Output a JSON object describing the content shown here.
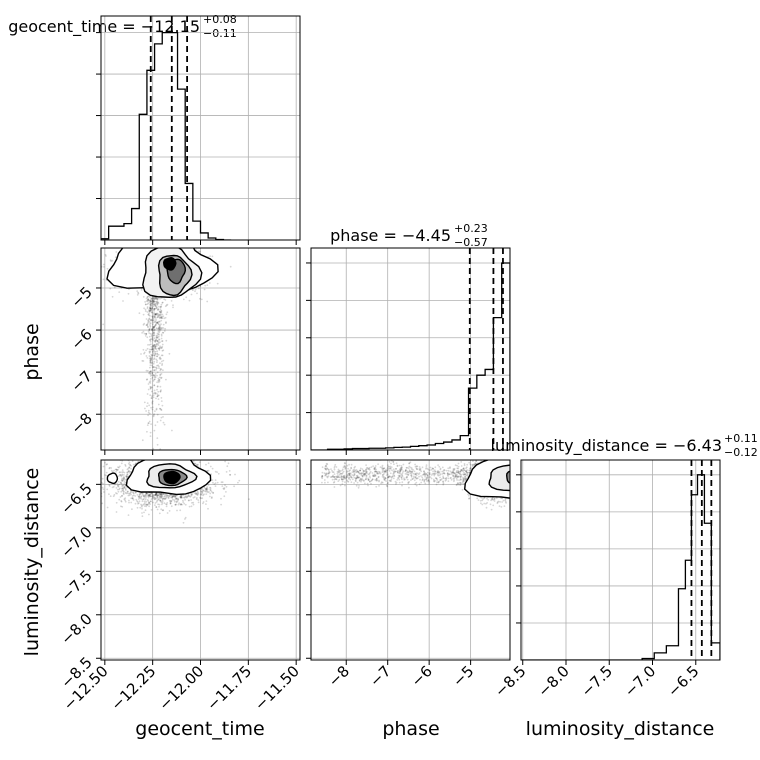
{
  "chart_data": {
    "type": "corner",
    "parameters": [
      "geocent_time",
      "phase",
      "luminosity_distance"
    ],
    "ranges": {
      "geocent_time": [
        -12.52,
        -11.48
      ],
      "phase": [
        -8.85,
        -4.05
      ],
      "luminosity_distance": [
        -8.52,
        -6.22
      ]
    },
    "ticks": {
      "geocent_time": {
        "values": [
          -12.5,
          -12.25,
          -12.0,
          -11.75,
          -11.5
        ],
        "labels": [
          "−12.50",
          "−12.25",
          "−12.00",
          "−11.75",
          "−11.50"
        ]
      },
      "phase_x": {
        "values": [
          -8,
          -7,
          -6,
          -5
        ],
        "labels": [
          "−8",
          "−7",
          "−6",
          "−5"
        ]
      },
      "phase_y": {
        "values": [
          -8,
          -7,
          -6,
          -5
        ],
        "labels": [
          "−8",
          "−7",
          "−6",
          "−5"
        ]
      },
      "luminosity_distance_x": {
        "values": [
          -8.5,
          -8.0,
          -7.5,
          -7.0,
          -6.5
        ],
        "labels": [
          "−8.5",
          "−8.0",
          "−7.5",
          "−7.0",
          "−6.5"
        ]
      },
      "luminosity_distance_y": {
        "values": [
          -8.5,
          -8.0,
          -7.5,
          -7.0,
          -6.5
        ],
        "labels": [
          "−8.5",
          "−8.0",
          "−7.5",
          "−7.0",
          "−6.5"
        ]
      }
    },
    "axis_labels": {
      "bottom": [
        "geocent_time",
        "phase",
        "luminosity_distance"
      ],
      "left": [
        "phase",
        "luminosity_distance"
      ]
    },
    "titles": [
      {
        "text": "geocent_time = −12.15",
        "sup": "+0.08",
        "sub": "−0.11"
      },
      {
        "text": "phase = −4.45",
        "sup": "+0.23",
        "sub": "−0.57"
      },
      {
        "text": "luminosity_distance = −6.43",
        "sup": "+0.11",
        "sub": "−0.12"
      }
    ],
    "quantiles": {
      "geocent_time": [
        -12.26,
        -12.15,
        -12.07
      ],
      "phase": [
        -5.02,
        -4.45,
        -4.22
      ],
      "luminosity_distance": [
        -6.55,
        -6.43,
        -6.32
      ]
    },
    "histograms": {
      "geocent_time": {
        "edges": [
          -12.52,
          -12.48,
          -12.44,
          -12.4,
          -12.36,
          -12.32,
          -12.28,
          -12.24,
          -12.2,
          -12.16,
          -12.12,
          -12.08,
          -12.04,
          -12.0,
          -11.96,
          -11.92,
          -11.88,
          -11.84
        ],
        "counts": [
          5,
          55,
          55,
          65,
          125,
          500,
          675,
          780,
          825,
          825,
          600,
          225,
          75,
          28,
          8,
          2,
          0
        ]
      },
      "phase": {
        "edges": [
          -8.85,
          -8.65,
          -8.45,
          -8.25,
          -8.05,
          -7.85,
          -7.65,
          -7.45,
          -7.25,
          -7.05,
          -6.85,
          -6.65,
          -6.45,
          -6.25,
          -6.05,
          -5.85,
          -5.65,
          -5.45,
          -5.25,
          -5.05,
          -4.85,
          -4.65,
          -4.45,
          -4.25,
          -4.05
        ],
        "counts": [
          0,
          0,
          5,
          5,
          8,
          10,
          10,
          12,
          12,
          15,
          18,
          20,
          25,
          30,
          35,
          45,
          55,
          70,
          100,
          430,
          520,
          560,
          920,
          1300
        ]
      },
      "luminosity_distance": {
        "edges": [
          -8.52,
          -7.12,
          -6.98,
          -6.84,
          -6.7,
          -6.62,
          -6.55,
          -6.48,
          -6.4,
          -6.32,
          -6.22
        ],
        "counts": [
          0,
          5,
          25,
          50,
          250,
          350,
          580,
          650,
          480,
          60
        ]
      }
    },
    "density_2d": [
      {
        "x": "geocent_time",
        "y": "phase",
        "core": [
          -12.15,
          -4.4
        ],
        "level_points": 5
      },
      {
        "x": "geocent_time",
        "y": "luminosity_distance",
        "core": [
          -12.15,
          -6.42
        ],
        "level_points": 4
      },
      {
        "x": "phase",
        "y": "luminosity_distance",
        "core": [
          -4.25,
          -6.43
        ],
        "level_points": 4
      }
    ],
    "grid": true
  }
}
